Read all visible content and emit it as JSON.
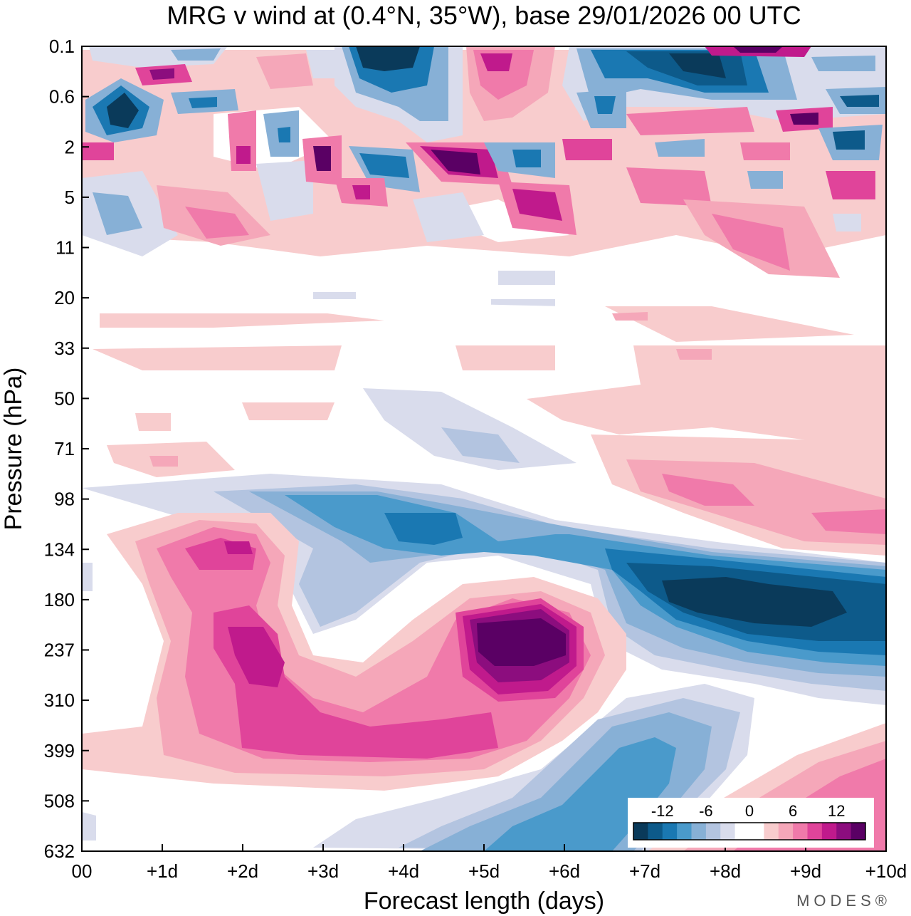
{
  "chart_data": {
    "type": "heatmap",
    "title": "MRG v wind at (0.4°N, 35°W),  base 29/01/2026  00 UTC",
    "xlabel": "Forecast length (days)",
    "ylabel": "Pressure (hPa)",
    "x_ticks": [
      "00",
      "+1d",
      "+2d",
      "+3d",
      "+4d",
      "+5d",
      "+6d",
      "+7d",
      "+8d",
      "+9d",
      "+10d"
    ],
    "x_range_days": [
      0,
      10
    ],
    "y_ticks": [
      "0.1",
      "0.6",
      "2",
      "5",
      "11",
      "20",
      "33",
      "50",
      "71",
      "98",
      "134",
      "180",
      "237",
      "310",
      "399",
      "508",
      "632"
    ],
    "colorbar": {
      "labels": [
        "-12",
        "-6",
        "0",
        "6",
        "12"
      ],
      "levels": [
        -16,
        -14,
        -12,
        -10,
        -8,
        -6,
        -4,
        -2,
        0,
        2,
        4,
        6,
        8,
        10,
        12,
        14,
        16
      ],
      "colors": [
        "#0a3a5a",
        "#0d5a8a",
        "#1a78b2",
        "#4a9acb",
        "#87b0d6",
        "#b3c4e0",
        "#d9dcec",
        "#ffffff",
        "#ffffff",
        "#f8cccd",
        "#f5a7b9",
        "#f07aaa",
        "#e0449a",
        "#c01a8c",
        "#8c0d7e",
        "#5a0064"
      ]
    },
    "cells": [
      {
        "t": 0.5,
        "p": "0.6",
        "v": -14
      },
      {
        "t": 1.0,
        "p": "0.1",
        "v": 12
      },
      {
        "t": 1.5,
        "p": "0.6",
        "v": -8
      },
      {
        "t": 3.5,
        "p": "0.1",
        "v": -15
      },
      {
        "t": 5.0,
        "p": "0.1",
        "v": 12
      },
      {
        "t": 7.5,
        "p": "0.1",
        "v": -12
      },
      {
        "t": 8.0,
        "p": "0.6",
        "v": -14
      },
      {
        "t": 9.0,
        "p": "2",
        "v": 14
      },
      {
        "t": 9.5,
        "p": "2",
        "v": -14
      },
      {
        "t": 3.0,
        "p": "2",
        "v": 14
      },
      {
        "t": 4.5,
        "p": "2",
        "v": 15
      },
      {
        "t": 3.5,
        "p": "2",
        "v": -12
      },
      {
        "t": 5.5,
        "p": "5",
        "v": 11
      },
      {
        "t": 2.0,
        "p": "5",
        "v": 9
      },
      {
        "t": 8.5,
        "p": "11",
        "v": 8
      },
      {
        "t": 2.0,
        "p": "134",
        "v": 11
      },
      {
        "t": 2.0,
        "p": "237",
        "v": 12
      },
      {
        "t": 4.0,
        "p": "399",
        "v": 8
      },
      {
        "t": 5.5,
        "p": "237",
        "v": 16
      },
      {
        "t": 4.0,
        "p": "98",
        "v": -12
      },
      {
        "t": 8.5,
        "p": "180",
        "v": -16
      },
      {
        "t": 7.0,
        "p": "508",
        "v": -9
      },
      {
        "t": 9.5,
        "p": "98",
        "v": 9
      },
      {
        "t": 9.5,
        "p": "508",
        "v": 8
      }
    ]
  },
  "branding": {
    "logo": "MODES®"
  }
}
